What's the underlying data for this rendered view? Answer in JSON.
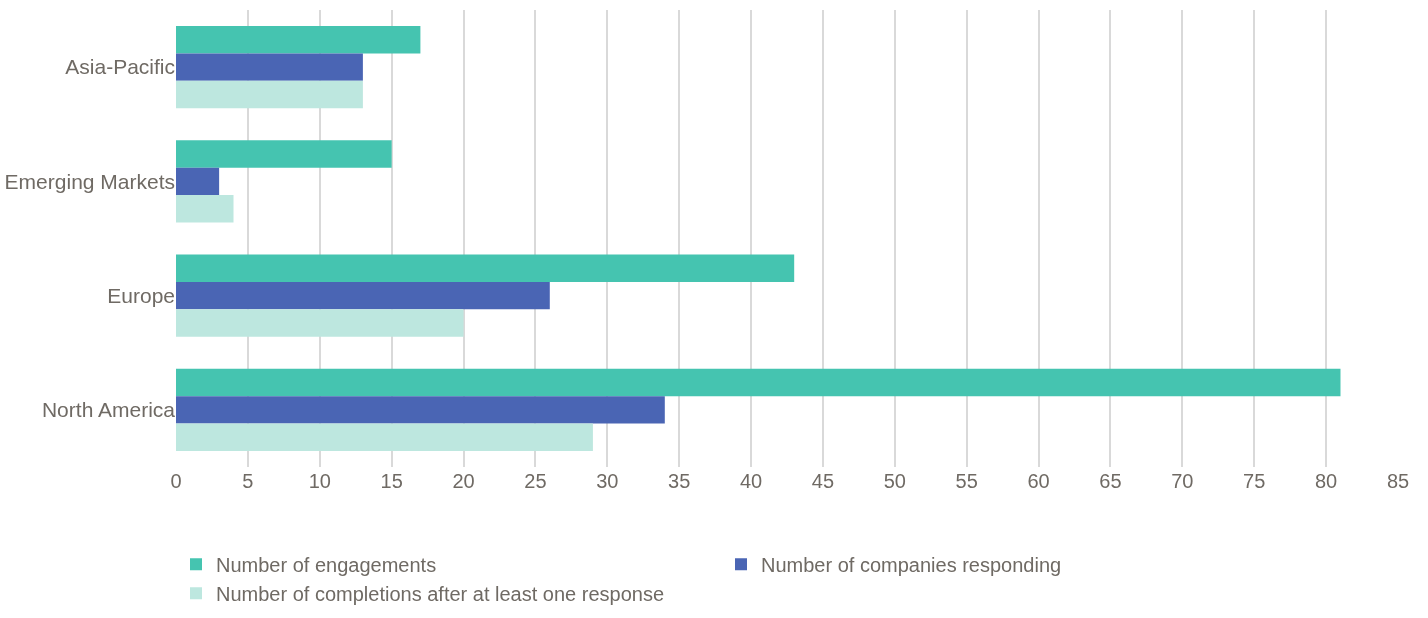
{
  "chart_data": {
    "type": "bar",
    "orientation": "horizontal",
    "categories": [
      "Asia-Pacific",
      "Emerging Markets",
      "Europe",
      "North America"
    ],
    "series": [
      {
        "name": "Number of engagements",
        "color": "#45c4b0",
        "values": [
          17,
          15,
          43,
          81
        ]
      },
      {
        "name": "Number of companies responding",
        "color": "#4a65b4",
        "values": [
          13,
          3,
          26,
          34
        ]
      },
      {
        "name": "Number of completions after at least one response",
        "color": "#bde7df",
        "values": [
          13,
          4,
          20,
          29
        ]
      }
    ],
    "xlim": [
      0,
      85
    ],
    "xticks": [
      0,
      5,
      10,
      15,
      20,
      25,
      30,
      35,
      40,
      45,
      50,
      55,
      60,
      65,
      70,
      75,
      80,
      85
    ],
    "grid": "x",
    "legend": "bottom"
  }
}
